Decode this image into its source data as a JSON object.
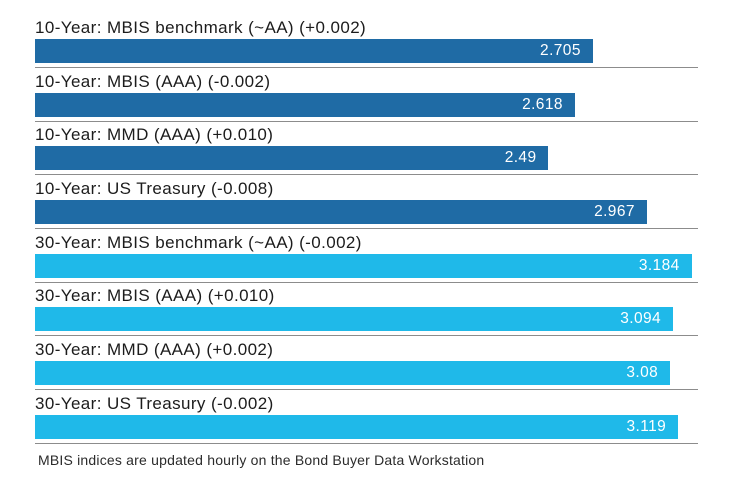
{
  "chart_data": {
    "type": "bar",
    "orientation": "horizontal",
    "title": "",
    "xlabel": "",
    "ylabel": "",
    "xlim": [
      0,
      3.215
    ],
    "grid": false,
    "legend": "none",
    "value_labels_position": "inside-end",
    "colors": {
      "10-year": "#1f6ba5",
      "30-year": "#1fb9e9",
      "separator": "#8c8c8c",
      "label_text": "#1c1c1c",
      "value_text": "#ffffff"
    },
    "rows": [
      {
        "label": "10-Year: MBIS benchmark (~AA) (+0.002)",
        "value": 2.705,
        "value_label": "2.705",
        "group": "10-year"
      },
      {
        "label": "10-Year: MBIS (AAA) (-0.002)",
        "value": 2.618,
        "value_label": "2.618",
        "group": "10-year"
      },
      {
        "label": "10-Year: MMD (AAA) (+0.010)",
        "value": 2.49,
        "value_label": "2.49",
        "group": "10-year"
      },
      {
        "label": "10-Year: US Treasury (-0.008)",
        "value": 2.967,
        "value_label": "2.967",
        "group": "10-year"
      },
      {
        "label": "30-Year: MBIS benchmark (~AA) (-0.002)",
        "value": 3.184,
        "value_label": "3.184",
        "group": "30-year"
      },
      {
        "label": "30-Year: MBIS (AAA) (+0.010)",
        "value": 3.094,
        "value_label": "3.094",
        "group": "30-year"
      },
      {
        "label": "30-Year: MMD (AAA) (+0.002)",
        "value": 3.08,
        "value_label": "3.08",
        "group": "30-year"
      },
      {
        "label": "30-Year: US Treasury (-0.002)",
        "value": 3.119,
        "value_label": "3.119",
        "group": "30-year"
      }
    ]
  },
  "footer": {
    "note": "MBIS indices are updated hourly on the Bond Buyer Data Workstation"
  }
}
